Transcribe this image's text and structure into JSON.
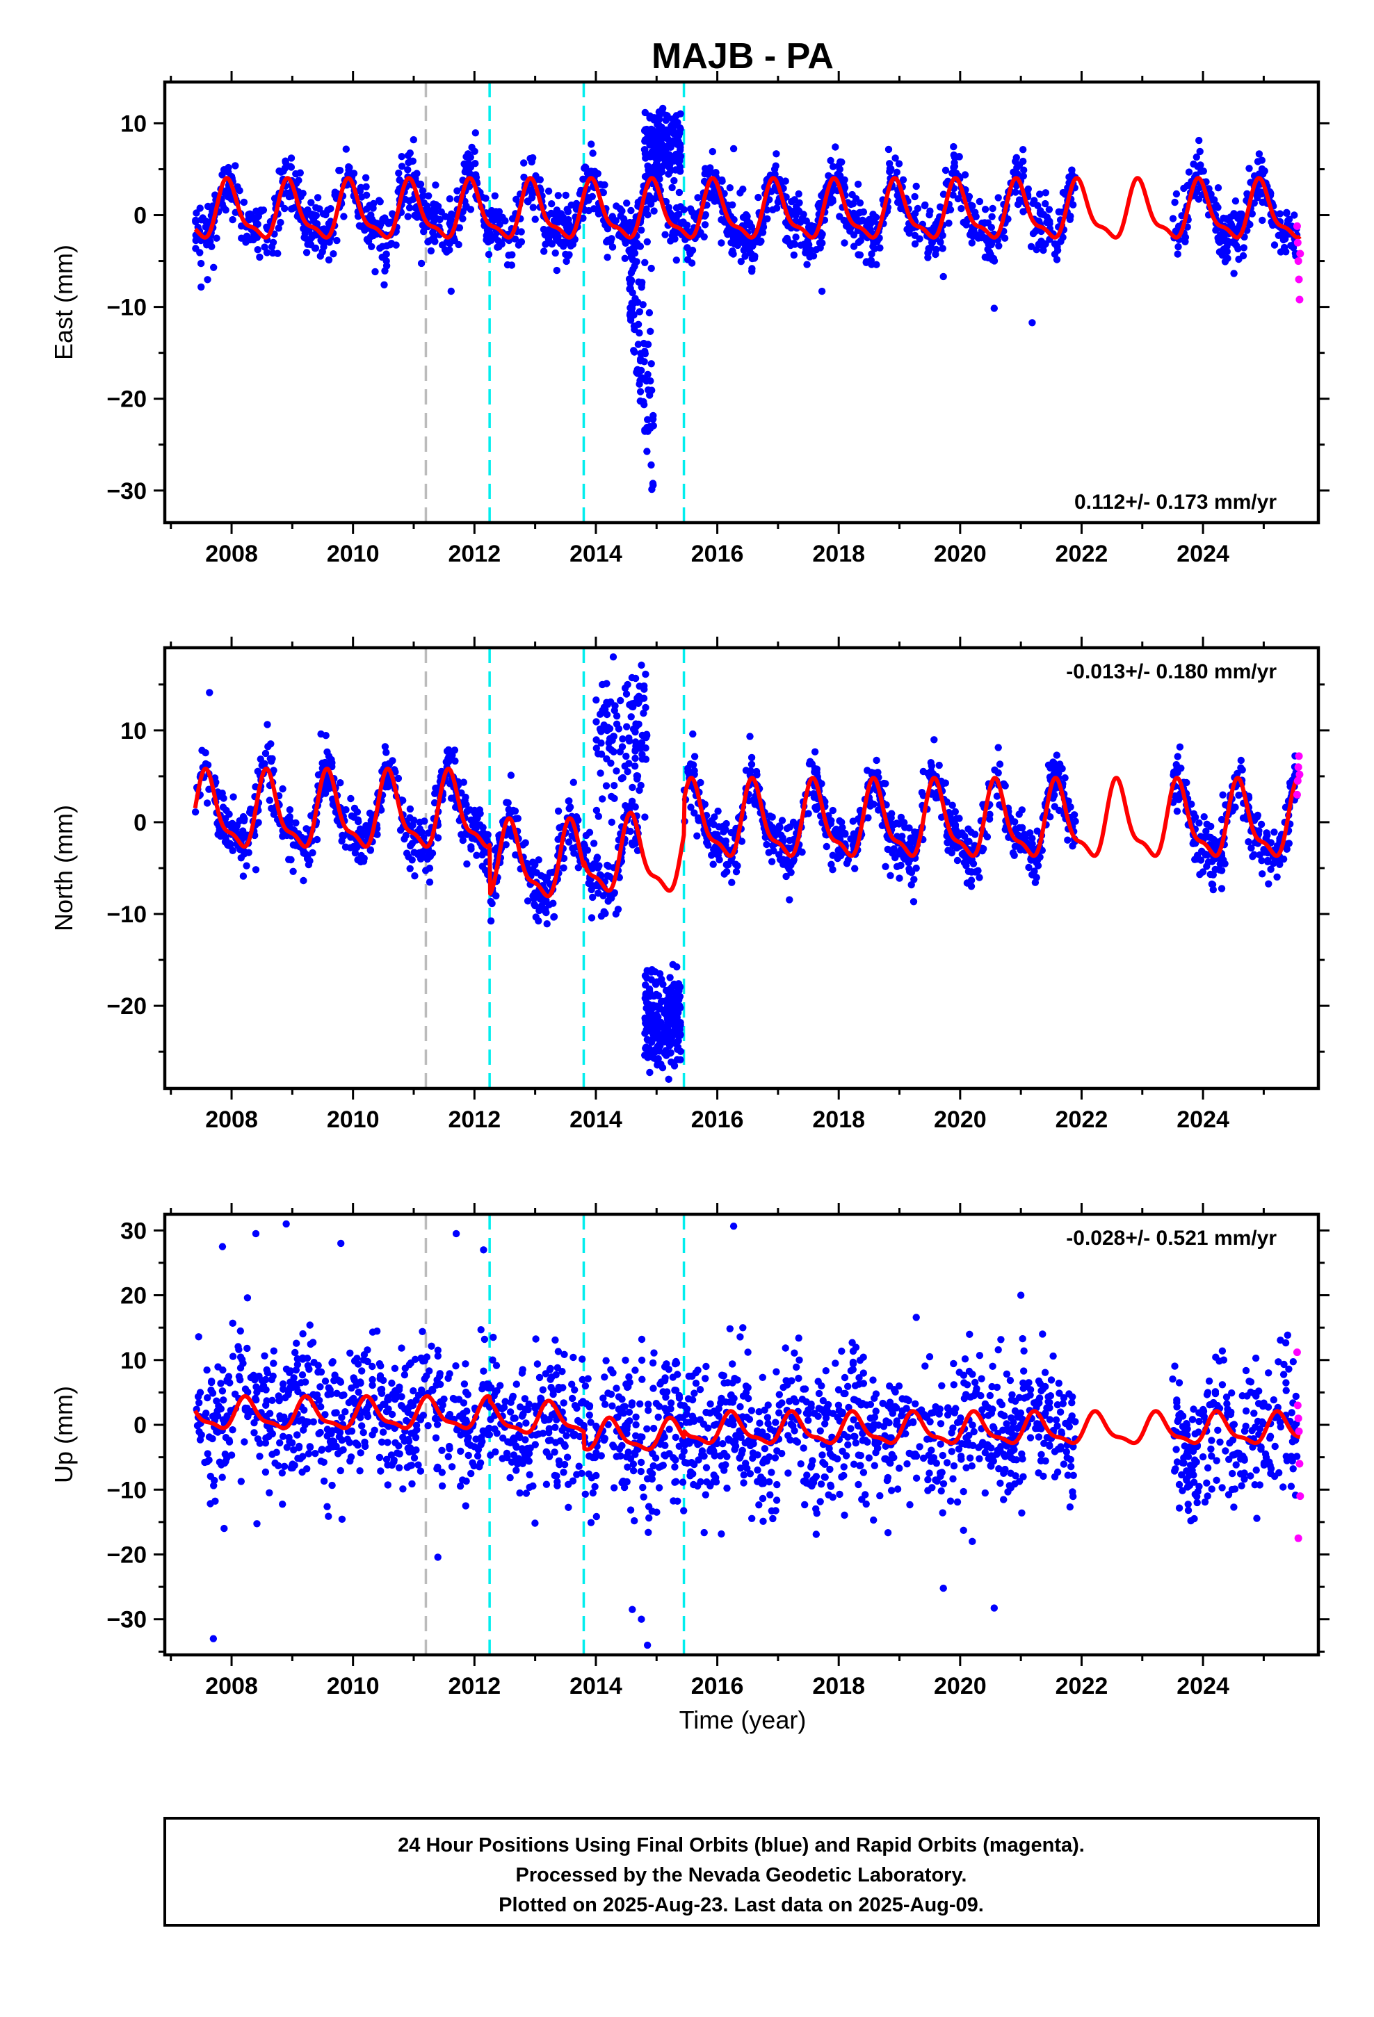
{
  "title": "MAJB - PA",
  "xlabel": "Time (year)",
  "colors": {
    "final_orbits": "#0000ff",
    "rapid_orbits": "#ff00ff",
    "model": "#ff0000",
    "equipment_change": "#00eeee",
    "other_event": "#bbbbbb",
    "frame": "#000000"
  },
  "footer": {
    "line1": "24 Hour Positions Using Final Orbits (blue) and Rapid Orbits (magenta).",
    "line2": "Processed by the Nevada Geodetic Laboratory.",
    "line3": "Plotted on 2025-Aug-23. Last data on 2025-Aug-09."
  },
  "chart_data": [
    {
      "type": "scatter",
      "component": "east",
      "ylabel": "East (mm)",
      "rate": "0.112+/- 0.173 mm/yr",
      "rate_position": "bottom-right",
      "xlim": [
        2006.9,
        2025.9
      ],
      "ylim": [
        -33.5,
        14.5
      ],
      "xticks": [
        2008,
        2010,
        2012,
        2014,
        2016,
        2018,
        2020,
        2022,
        2024
      ],
      "yticks": [
        10,
        0,
        -10,
        -20,
        -30
      ],
      "yminor": 5,
      "event_lines": [
        {
          "year": 2011.2,
          "kind": "other_event"
        },
        {
          "year": 2012.25,
          "kind": "equipment_change"
        },
        {
          "year": 2013.8,
          "kind": "equipment_change"
        },
        {
          "year": 2015.45,
          "kind": "equipment_change"
        }
      ],
      "seasonal": {
        "amplitude": 2.9,
        "peak_year_fraction": 0.95,
        "offset": 0.2
      },
      "scatter_sigma": 1.6,
      "data_spans": [
        [
          2007.4,
          2012.25
        ],
        [
          2012.25,
          2013.8
        ],
        [
          2013.8,
          2014.55
        ],
        [
          2014.55,
          2015.45
        ],
        [
          2015.45,
          2021.9
        ],
        [
          2023.5,
          2025.55
        ]
      ],
      "anomalies": [
        {
          "x0": 2014.55,
          "x1": 2014.95,
          "y_min": -32,
          "y_max": -2,
          "count": 90,
          "note": "spread"
        },
        {
          "x0": 2014.8,
          "x1": 2015.4,
          "y_min": 3,
          "y_max": 12,
          "count": 160,
          "note": "offset"
        }
      ],
      "rapid_points": [
        {
          "x": 2025.55,
          "y": -1.2
        },
        {
          "x": 2025.56,
          "y": -3.0
        },
        {
          "x": 2025.57,
          "y": -5.0
        },
        {
          "x": 2025.58,
          "y": -7.0
        },
        {
          "x": 2025.59,
          "y": -9.2
        },
        {
          "x": 2025.6,
          "y": -4.2
        }
      ]
    },
    {
      "type": "scatter",
      "component": "north",
      "ylabel": "North (mm)",
      "rate": "-0.013+/- 0.180 mm/yr",
      "rate_position": "top-right",
      "xlim": [
        2006.9,
        2025.9
      ],
      "ylim": [
        -29,
        19
      ],
      "xticks": [
        2008,
        2010,
        2012,
        2014,
        2016,
        2018,
        2020,
        2022,
        2024
      ],
      "yticks": [
        10,
        0,
        -10,
        -20
      ],
      "yminor": 5,
      "event_lines": [
        {
          "year": 2011.2,
          "kind": "other_event"
        },
        {
          "year": 2012.25,
          "kind": "equipment_change"
        },
        {
          "year": 2013.8,
          "kind": "equipment_change"
        },
        {
          "year": 2015.45,
          "kind": "equipment_change"
        }
      ],
      "seasonal": {
        "amplitude": 3.8,
        "peak_year_fraction": 0.6,
        "offset": 1.5
      },
      "level_segments": [
        {
          "x0": 2007.4,
          "x1": 2012.25,
          "level": 0.8
        },
        {
          "x0": 2012.25,
          "x1": 2013.8,
          "level": -4.6
        },
        {
          "x0": 2013.8,
          "x1": 2015.45,
          "level": -4.0
        },
        {
          "x0": 2015.45,
          "x1": 2025.6,
          "level": -0.2
        }
      ],
      "scatter_sigma": 1.5,
      "data_spans": [
        [
          2007.4,
          2012.25
        ],
        [
          2012.25,
          2013.8
        ],
        [
          2013.8,
          2014.7
        ],
        [
          2015.45,
          2021.9
        ],
        [
          2023.5,
          2025.55
        ]
      ],
      "anomalies": [
        {
          "x0": 2014.0,
          "x1": 2014.85,
          "y_min": 0,
          "y_max": 18,
          "count": 120,
          "note": "offset"
        },
        {
          "x0": 2014.8,
          "x1": 2015.4,
          "y_min": -28,
          "y_max": -15,
          "count": 220,
          "note": "offset"
        }
      ],
      "rapid_points": [
        {
          "x": 2025.55,
          "y": 3.0
        },
        {
          "x": 2025.56,
          "y": 4.5
        },
        {
          "x": 2025.57,
          "y": 6.0
        },
        {
          "x": 2025.58,
          "y": 7.2
        },
        {
          "x": 2025.59,
          "y": 5.2
        }
      ]
    },
    {
      "type": "scatter",
      "component": "up",
      "ylabel": "Up (mm)",
      "rate": "-0.028+/- 0.521 mm/yr",
      "rate_position": "top-right",
      "xlim": [
        2006.9,
        2025.9
      ],
      "ylim": [
        -35.5,
        32.5
      ],
      "xticks": [
        2008,
        2010,
        2012,
        2014,
        2016,
        2018,
        2020,
        2022,
        2024
      ],
      "yticks": [
        30,
        20,
        10,
        0,
        -10,
        -20,
        -30
      ],
      "yminor": 5,
      "event_lines": [
        {
          "year": 2011.2,
          "kind": "other_event"
        },
        {
          "year": 2012.25,
          "kind": "equipment_change"
        },
        {
          "year": 2013.8,
          "kind": "equipment_change"
        },
        {
          "year": 2015.45,
          "kind": "equipment_change"
        }
      ],
      "seasonal": {
        "amplitude": 2.2,
        "peak_year_fraction": 0.25,
        "offset": 0.0
      },
      "level_segments": [
        {
          "x0": 2007.4,
          "x1": 2012.25,
          "level": 1.5
        },
        {
          "x0": 2012.25,
          "x1": 2013.8,
          "level": 0.8
        },
        {
          "x0": 2013.8,
          "x1": 2015.45,
          "level": -1.8
        },
        {
          "x0": 2015.45,
          "x1": 2025.6,
          "level": -0.8
        }
      ],
      "scatter_sigma": 5.5,
      "data_spans": [
        [
          2007.4,
          2012.25
        ],
        [
          2012.25,
          2013.8
        ],
        [
          2013.8,
          2015.45
        ],
        [
          2015.45,
          2021.9
        ],
        [
          2023.5,
          2025.55
        ]
      ],
      "outliers": [
        {
          "x": 2007.7,
          "y": -33
        },
        {
          "x": 2008.4,
          "y": 29.5
        },
        {
          "x": 2008.9,
          "y": 31
        },
        {
          "x": 2007.85,
          "y": 27.5
        },
        {
          "x": 2009.8,
          "y": 28
        },
        {
          "x": 2011.7,
          "y": 29.5
        },
        {
          "x": 2012.15,
          "y": 27
        },
        {
          "x": 2014.6,
          "y": -28.5
        },
        {
          "x": 2014.75,
          "y": -30
        },
        {
          "x": 2014.85,
          "y": -34
        },
        {
          "x": 2020.2,
          "y": -18
        },
        {
          "x": 2021.0,
          "y": 20
        }
      ],
      "rapid_points": [
        {
          "x": 2025.55,
          "y": 11.2
        },
        {
          "x": 2025.56,
          "y": 3.0
        },
        {
          "x": 2025.57,
          "y": 1.0
        },
        {
          "x": 2025.58,
          "y": -1.0
        },
        {
          "x": 2025.59,
          "y": -6.0
        },
        {
          "x": 2025.6,
          "y": -11.0
        },
        {
          "x": 2025.57,
          "y": -17.5
        }
      ]
    }
  ]
}
